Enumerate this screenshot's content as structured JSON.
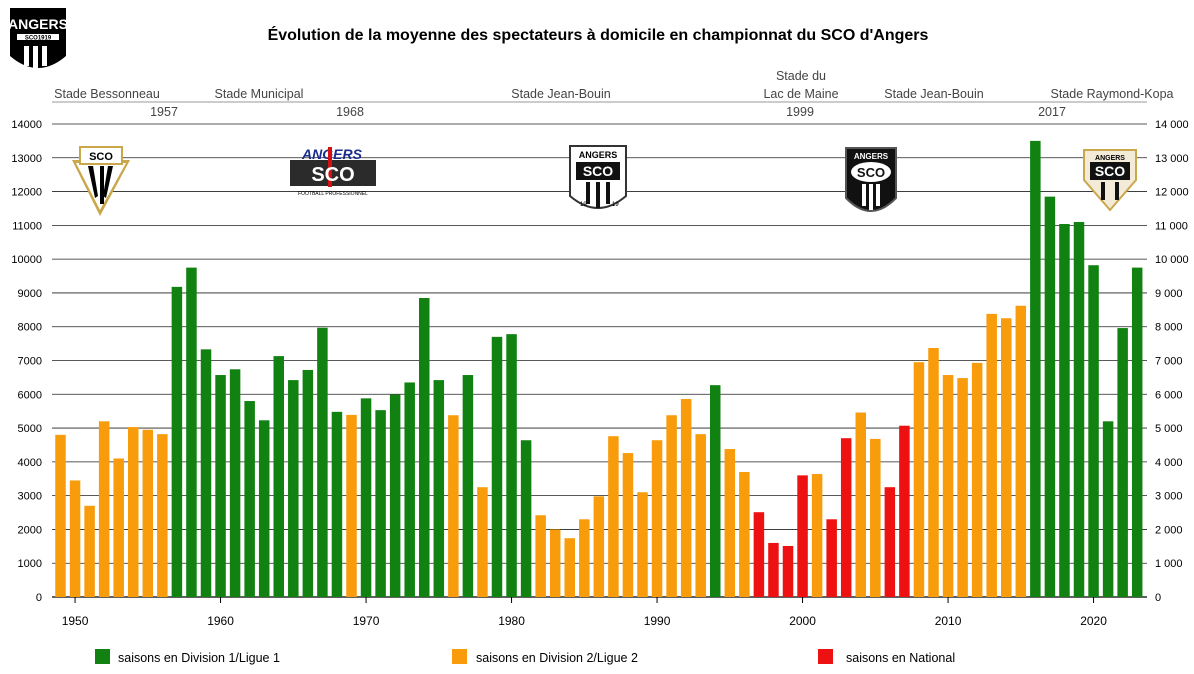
{
  "chart_data": {
    "type": "bar",
    "title": "Évolution de la moyenne des spectateurs à domicile en championnat du SCO d'Angers",
    "ylim": [
      0,
      14000
    ],
    "yticks_left": [
      "0",
      "1000",
      "2000",
      "3000",
      "4000",
      "5000",
      "6000",
      "7000",
      "8000",
      "9000",
      "10000",
      "11000",
      "12000",
      "13000",
      "14000"
    ],
    "yticks_right": [
      "0",
      "1 000",
      "2 000",
      "3 000",
      "4 000",
      "5 000",
      "6 000",
      "7 000",
      "8 000",
      "9 000",
      "10 000",
      "11 000",
      "12 000",
      "13 000",
      "14 000"
    ],
    "xticks": [
      "1950",
      "1960",
      "1970",
      "1980",
      "1990",
      "2000",
      "2010",
      "2020"
    ],
    "grid": true,
    "colors": {
      "D1": "#118211",
      "D2": "#f99c0b",
      "N": "#ee1111"
    },
    "legend": [
      {
        "key": "D1",
        "label": "saisons en Division 1/Ligue 1"
      },
      {
        "key": "D2",
        "label": "saisons en Division 2/Ligue 2"
      },
      {
        "key": "N",
        "label": "saisons en National"
      }
    ],
    "stadiums": [
      {
        "name": "Stade Bessonneau",
        "year": "1957"
      },
      {
        "name": "Stade Municipal",
        "year": "1968"
      },
      {
        "name": "Stade Jean-Bouin",
        "year": ""
      },
      {
        "name": "Stade du",
        "name2": "Lac de Maine",
        "year": "1999"
      },
      {
        "name": "Stade Jean-Bouin",
        "year": ""
      },
      {
        "name": "Stade Raymond-Kopa",
        "year": "2017"
      }
    ],
    "logo_text": {
      "angers": "ANGERS",
      "sco": "SCO",
      "sub": "FOOTBALL PROFESSIONNEL",
      "year_left": "19",
      "year_right": "19",
      "top_left_sub": "SCO1919"
    },
    "seasons": [
      {
        "year": 1949,
        "value": 4800,
        "div": "D2"
      },
      {
        "year": 1950,
        "value": 3450,
        "div": "D2"
      },
      {
        "year": 1951,
        "value": 2700,
        "div": "D2"
      },
      {
        "year": 1952,
        "value": 5200,
        "div": "D2"
      },
      {
        "year": 1953,
        "value": 4100,
        "div": "D2"
      },
      {
        "year": 1954,
        "value": 5030,
        "div": "D2"
      },
      {
        "year": 1955,
        "value": 4950,
        "div": "D2"
      },
      {
        "year": 1956,
        "value": 4820,
        "div": "D2"
      },
      {
        "year": 1957,
        "value": 9180,
        "div": "D1"
      },
      {
        "year": 1958,
        "value": 9750,
        "div": "D1"
      },
      {
        "year": 1959,
        "value": 7330,
        "div": "D1"
      },
      {
        "year": 1960,
        "value": 6570,
        "div": "D1"
      },
      {
        "year": 1961,
        "value": 6740,
        "div": "D1"
      },
      {
        "year": 1962,
        "value": 5800,
        "div": "D1"
      },
      {
        "year": 1963,
        "value": 5230,
        "div": "D1"
      },
      {
        "year": 1964,
        "value": 7130,
        "div": "D1"
      },
      {
        "year": 1965,
        "value": 6420,
        "div": "D1"
      },
      {
        "year": 1966,
        "value": 6720,
        "div": "D1"
      },
      {
        "year": 1967,
        "value": 7970,
        "div": "D1"
      },
      {
        "year": 1968,
        "value": 5480,
        "div": "D1"
      },
      {
        "year": 1969,
        "value": 5390,
        "div": "D2"
      },
      {
        "year": 1970,
        "value": 5880,
        "div": "D1"
      },
      {
        "year": 1971,
        "value": 5530,
        "div": "D1"
      },
      {
        "year": 1972,
        "value": 5990,
        "div": "D1"
      },
      {
        "year": 1973,
        "value": 6350,
        "div": "D1"
      },
      {
        "year": 1974,
        "value": 8850,
        "div": "D1"
      },
      {
        "year": 1975,
        "value": 6420,
        "div": "D1"
      },
      {
        "year": 1976,
        "value": 5380,
        "div": "D2"
      },
      {
        "year": 1977,
        "value": 6570,
        "div": "D1"
      },
      {
        "year": 1978,
        "value": 3250,
        "div": "D2"
      },
      {
        "year": 1979,
        "value": 7700,
        "div": "D1"
      },
      {
        "year": 1980,
        "value": 7780,
        "div": "D1"
      },
      {
        "year": 1981,
        "value": 4640,
        "div": "D1"
      },
      {
        "year": 1982,
        "value": 2420,
        "div": "D2"
      },
      {
        "year": 1983,
        "value": 2000,
        "div": "D2"
      },
      {
        "year": 1984,
        "value": 1740,
        "div": "D2"
      },
      {
        "year": 1985,
        "value": 2300,
        "div": "D2"
      },
      {
        "year": 1986,
        "value": 2980,
        "div": "D2"
      },
      {
        "year": 1987,
        "value": 4760,
        "div": "D2"
      },
      {
        "year": 1988,
        "value": 4260,
        "div": "D2"
      },
      {
        "year": 1989,
        "value": 3100,
        "div": "D2"
      },
      {
        "year": 1990,
        "value": 4640,
        "div": "D2"
      },
      {
        "year": 1991,
        "value": 5380,
        "div": "D2"
      },
      {
        "year": 1992,
        "value": 5860,
        "div": "D2"
      },
      {
        "year": 1993,
        "value": 4820,
        "div": "D2"
      },
      {
        "year": 1994,
        "value": 6270,
        "div": "D1"
      },
      {
        "year": 1995,
        "value": 4380,
        "div": "D2"
      },
      {
        "year": 1996,
        "value": 3700,
        "div": "D2"
      },
      {
        "year": 1997,
        "value": 2510,
        "div": "N"
      },
      {
        "year": 1998,
        "value": 1600,
        "div": "N"
      },
      {
        "year": 1999,
        "value": 1510,
        "div": "N"
      },
      {
        "year": 2000,
        "value": 3600,
        "div": "N"
      },
      {
        "year": 2001,
        "value": 3640,
        "div": "D2"
      },
      {
        "year": 2002,
        "value": 2300,
        "div": "N"
      },
      {
        "year": 2003,
        "value": 4700,
        "div": "N"
      },
      {
        "year": 2004,
        "value": 5460,
        "div": "D2"
      },
      {
        "year": 2005,
        "value": 4680,
        "div": "D2"
      },
      {
        "year": 2006,
        "value": 3250,
        "div": "N"
      },
      {
        "year": 2007,
        "value": 5070,
        "div": "N"
      },
      {
        "year": 2008,
        "value": 6950,
        "div": "D2"
      },
      {
        "year": 2009,
        "value": 7370,
        "div": "D2"
      },
      {
        "year": 2010,
        "value": 6570,
        "div": "D2"
      },
      {
        "year": 2011,
        "value": 6480,
        "div": "D2"
      },
      {
        "year": 2012,
        "value": 6930,
        "div": "D2"
      },
      {
        "year": 2013,
        "value": 8380,
        "div": "D2"
      },
      {
        "year": 2014,
        "value": 8250,
        "div": "D2"
      },
      {
        "year": 2015,
        "value": 8620,
        "div": "D2"
      },
      {
        "year": 2016,
        "value": 13500,
        "div": "D1"
      },
      {
        "year": 2017,
        "value": 11850,
        "div": "D1"
      },
      {
        "year": 2018,
        "value": 11040,
        "div": "D1"
      },
      {
        "year": 2019,
        "value": 11100,
        "div": "D1"
      },
      {
        "year": 2020,
        "value": 9820,
        "div": "D1"
      },
      {
        "year": 2021,
        "value": 5200,
        "div": "D1"
      },
      {
        "year": 2022,
        "value": 7960,
        "div": "D1"
      },
      {
        "year": 2023,
        "value": 9750,
        "div": "D1"
      }
    ]
  }
}
